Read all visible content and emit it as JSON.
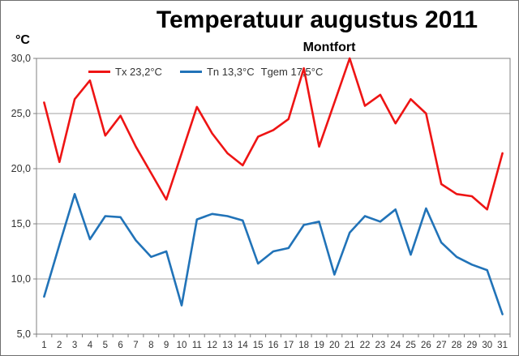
{
  "header": {
    "title": "Temperatuur augustus 2011",
    "subtitle": "Montfort",
    "y_unit_label": "°C"
  },
  "legend": {
    "tx_label": "Tx 23,2°C",
    "tn_label": "Tn 13,3°C",
    "tgem_label": "Tgem 17,5°C"
  },
  "colors": {
    "tx_line": "#EE1414",
    "tn_line": "#2173B8",
    "gridline": "#A0A0A0",
    "plot_border": "#808080",
    "tick_label": "#333333"
  },
  "chart_data": {
    "type": "line",
    "title": "Temperatuur augustus 2011",
    "subtitle": "Montfort",
    "ylabel": "°C",
    "xlabel": "",
    "ylim": [
      5,
      30
    ],
    "grid": true,
    "legend_position": "top-inside",
    "x": [
      1,
      2,
      3,
      4,
      5,
      6,
      7,
      8,
      9,
      10,
      11,
      12,
      13,
      14,
      15,
      16,
      17,
      18,
      19,
      20,
      21,
      22,
      23,
      24,
      25,
      26,
      27,
      28,
      29,
      30,
      31
    ],
    "y_tick_values": [
      30,
      25,
      20,
      15,
      10,
      5
    ],
    "y_tick_labels": [
      "30,0",
      "25,0",
      "20,0",
      "15,0",
      "10,0",
      "5,0"
    ],
    "series": [
      {
        "name": "Tx",
        "legend": "Tx 23,2°C",
        "color": "#EE1414",
        "values": [
          26.0,
          20.6,
          26.3,
          28.0,
          23.0,
          24.8,
          22.0,
          19.6,
          17.2,
          21.4,
          25.6,
          23.2,
          21.4,
          20.3,
          22.9,
          23.5,
          24.5,
          29.1,
          22.0,
          26.0,
          30.0,
          25.7,
          26.7,
          24.1,
          26.3,
          25.0,
          18.6,
          17.7,
          17.5,
          16.3,
          21.4
        ]
      },
      {
        "name": "Tn",
        "legend": "Tn 13,3°C Tgem 17,5°C",
        "color": "#2173B8",
        "values": [
          8.4,
          13.1,
          17.7,
          13.6,
          15.7,
          15.6,
          13.5,
          12.0,
          12.5,
          7.6,
          15.4,
          15.9,
          15.7,
          15.3,
          11.4,
          12.5,
          12.8,
          14.9,
          15.2,
          10.4,
          14.2,
          15.7,
          15.2,
          16.3,
          12.2,
          16.4,
          13.3,
          12.0,
          11.3,
          10.8,
          6.8
        ]
      }
    ]
  }
}
